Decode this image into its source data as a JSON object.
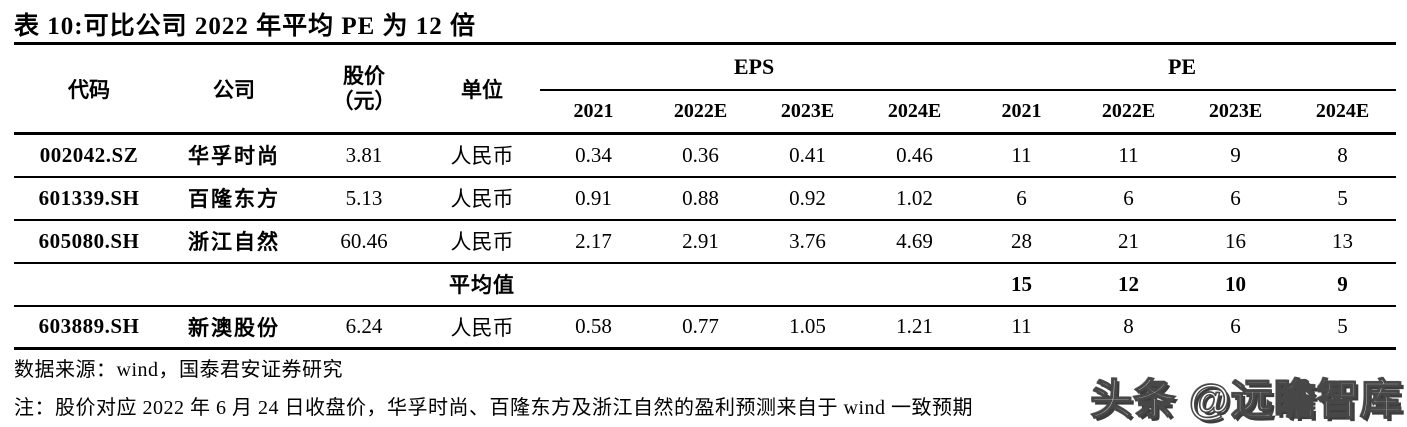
{
  "title": "表 10:可比公司 2022 年平均 PE 为 12 倍",
  "table": {
    "headers": {
      "code": "代码",
      "company": "公司",
      "price_line1": "股价",
      "price_line2": "（元）",
      "unit": "单位",
      "eps_group": "EPS",
      "pe_group": "PE",
      "years": [
        "2021",
        "2022E",
        "2023E",
        "2024E",
        "2021",
        "2022E",
        "2023E",
        "2024E"
      ]
    },
    "rows": [
      {
        "code": "002042.SZ",
        "company": "华孚时尚",
        "price": "3.81",
        "unit": "人民币",
        "eps": [
          "0.34",
          "0.36",
          "0.41",
          "0.46"
        ],
        "pe": [
          "11",
          "11",
          "9",
          "8"
        ],
        "is_average": false
      },
      {
        "code": "601339.SH",
        "company": "百隆东方",
        "price": "5.13",
        "unit": "人民币",
        "eps": [
          "0.91",
          "0.88",
          "0.92",
          "1.02"
        ],
        "pe": [
          "6",
          "6",
          "6",
          "5"
        ],
        "is_average": false
      },
      {
        "code": "605080.SH",
        "company": "浙江自然",
        "price": "60.46",
        "unit": "人民币",
        "eps": [
          "2.17",
          "2.91",
          "3.76",
          "4.69"
        ],
        "pe": [
          "28",
          "21",
          "16",
          "13"
        ],
        "is_average": false
      },
      {
        "code": "",
        "company": "",
        "price": "",
        "unit": "平均值",
        "eps": [
          "",
          "",
          "",
          ""
        ],
        "pe": [
          "15",
          "12",
          "10",
          "9"
        ],
        "is_average": true
      },
      {
        "code": "603889.SH",
        "company": "新澳股份",
        "price": "6.24",
        "unit": "人民币",
        "eps": [
          "0.58",
          "0.77",
          "1.05",
          "1.21"
        ],
        "pe": [
          "11",
          "8",
          "6",
          "5"
        ],
        "is_average": false
      }
    ]
  },
  "footer": {
    "source": "数据来源：wind，国泰君安证券研究",
    "note": "注：股价对应 2022 年 6 月 24 日收盘价，华孚时尚、百隆东方及浙江自然的盈利预测来自于 wind 一致预期"
  },
  "watermark": "头条 @远瞻智库",
  "colors": {
    "text": "#000000",
    "background": "#ffffff",
    "rule": "#000000",
    "watermark_shadow": "#3c3c3c"
  }
}
